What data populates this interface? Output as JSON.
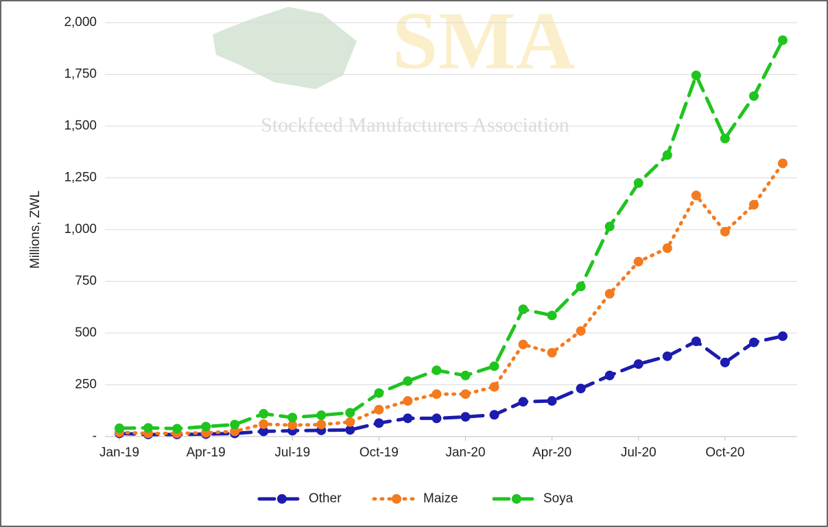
{
  "chart_data": {
    "type": "line",
    "y_label": "Millions, ZWL",
    "watermark": {
      "title": "SMA",
      "subtitle": "Stockfeed Manufacturers Association"
    },
    "categories": [
      "Jan-19",
      null,
      null,
      "Apr-19",
      null,
      null,
      "Jul-19",
      null,
      null,
      "Oct-19",
      null,
      null,
      "Jan-20",
      null,
      null,
      "Apr-20",
      null,
      null,
      "Jul-20",
      null,
      null,
      "Oct-20",
      null,
      null
    ],
    "series": [
      {
        "name": "Other",
        "color": "#1c1cae",
        "line_style": "dashed",
        "values": [
          15,
          10,
          10,
          12,
          15,
          25,
          28,
          30,
          32,
          65,
          88,
          88,
          95,
          105,
          168,
          172,
          232,
          295,
          350,
          388,
          460,
          358,
          455,
          485
        ]
      },
      {
        "name": "Maize",
        "color": "#f47a1f",
        "line_style": "dotted",
        "values": [
          20,
          15,
          15,
          18,
          25,
          60,
          55,
          58,
          70,
          130,
          172,
          205,
          205,
          240,
          445,
          405,
          510,
          690,
          845,
          910,
          1165,
          990,
          1120,
          1320
        ]
      },
      {
        "name": "Soya",
        "color": "#1fc41f",
        "line_style": "dashed",
        "values": [
          40,
          42,
          38,
          48,
          58,
          110,
          92,
          103,
          115,
          210,
          268,
          320,
          295,
          340,
          615,
          585,
          725,
          1015,
          1225,
          1360,
          1745,
          1440,
          1645,
          1915
        ]
      }
    ],
    "ylim": [
      0,
      2000
    ],
    "yticks": [
      {
        "value": 0,
        "label": "-"
      },
      250,
      500,
      750,
      {
        "value": 1000,
        "label": "1,000"
      },
      {
        "value": 1250,
        "label": "1,250"
      },
      {
        "value": 1500,
        "label": "1,500"
      },
      {
        "value": 1750,
        "label": "1,750"
      },
      {
        "value": 2000,
        "label": "2,000"
      }
    ],
    "grid": true,
    "legend": "bottom"
  }
}
